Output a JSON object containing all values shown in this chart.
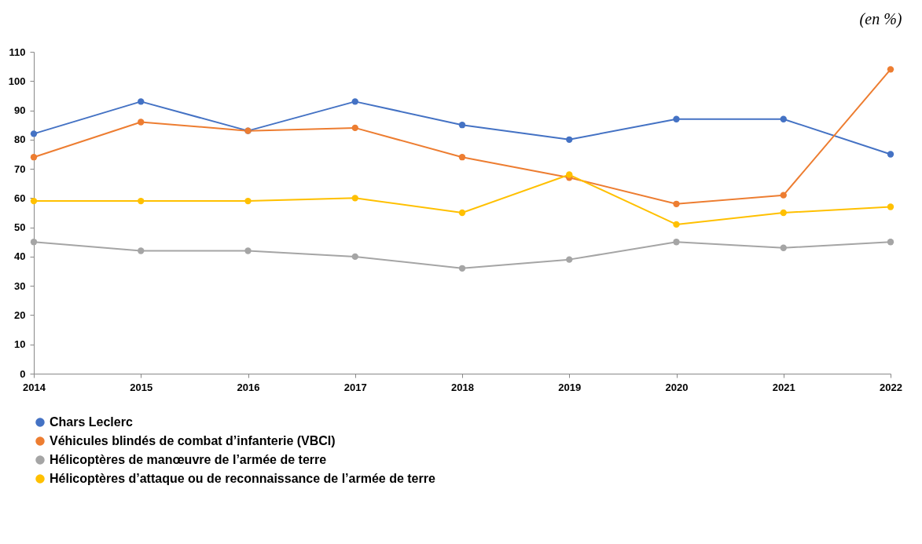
{
  "chart_data": {
    "type": "line",
    "annotations": [
      "(en %)"
    ],
    "x": [
      2014,
      2015,
      2016,
      2017,
      2018,
      2019,
      2020,
      2021,
      2022
    ],
    "xlim": [
      2014,
      2022
    ],
    "xticks": [
      2014,
      2015,
      2016,
      2017,
      2018,
      2019,
      2020,
      2021,
      2022
    ],
    "ylim": [
      0,
      110
    ],
    "yticks": [
      0,
      10,
      20,
      30,
      40,
      50,
      60,
      70,
      80,
      90,
      100,
      110
    ],
    "grid": false,
    "legend": "bottom",
    "marker": "circle",
    "line_style": "solid",
    "series": [
      {
        "name": "Chars Leclerc",
        "color": "#4472c4",
        "values": [
          82,
          93,
          83,
          93,
          85,
          80,
          87,
          87,
          75
        ]
      },
      {
        "name": "Véhicules blindés de combat d’infanterie (VBCI)",
        "color": "#ed7d31",
        "values": [
          74,
          86,
          83,
          84,
          74,
          67,
          58,
          61,
          104
        ]
      },
      {
        "name": "Hélicoptères de manœuvre de l’armée de terre",
        "color": "#a5a5a5",
        "values": [
          45,
          42,
          42,
          40,
          36,
          39,
          45,
          43,
          45
        ]
      },
      {
        "name": "Hélicoptères d’attaque ou de reconnaissance de l’armée de terre",
        "color": "#ffc000",
        "values": [
          59,
          59,
          59,
          60,
          55,
          68,
          51,
          55,
          57
        ]
      }
    ]
  }
}
